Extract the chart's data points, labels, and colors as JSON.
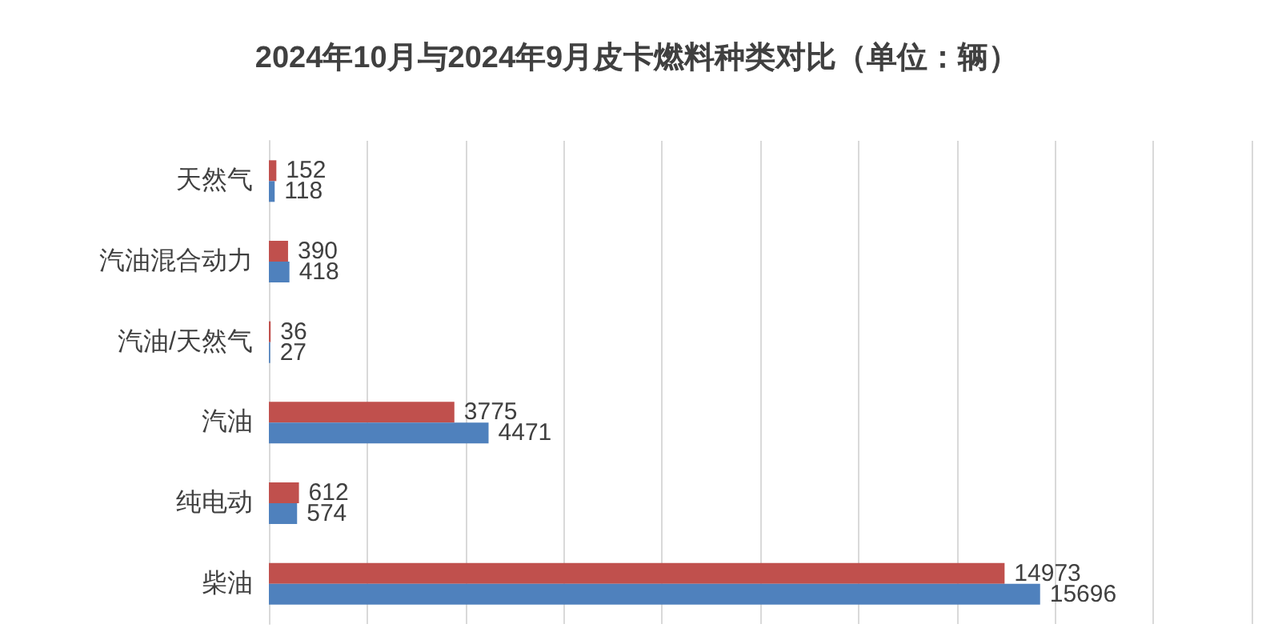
{
  "chart_data": {
    "type": "bar",
    "orientation": "horizontal",
    "title": "2024年10月与2024年9月皮卡燃料种类对比（单位：辆）",
    "categories": [
      "天然气",
      "汽油混合动力",
      "汽油/天然气",
      "汽油",
      "纯电动",
      "柴油"
    ],
    "series": [
      {
        "color": "#c0504d",
        "values": [
          152,
          390,
          36,
          3775,
          612,
          14973
        ]
      },
      {
        "color": "#4f81bd",
        "values": [
          118,
          418,
          27,
          4471,
          574,
          15696
        ]
      }
    ],
    "xlim": [
      0,
      20000
    ],
    "xticks": [
      {
        "value": 0,
        "label": null
      },
      {
        "value": 2000,
        "label": null
      },
      {
        "value": 4000,
        "label": null
      },
      {
        "value": 6000,
        "label": null
      },
      {
        "value": 8000,
        "label": null
      },
      {
        "value": 10000,
        "label": null
      },
      {
        "value": 12000,
        "label": null
      },
      {
        "value": 14000,
        "label": null
      },
      {
        "value": 16000,
        "label": null
      },
      {
        "value": 18000,
        "label": null
      },
      {
        "value": 20000,
        "label": null
      }
    ],
    "tick_labels": "y",
    "grid": "x",
    "data_labels": true
  }
}
